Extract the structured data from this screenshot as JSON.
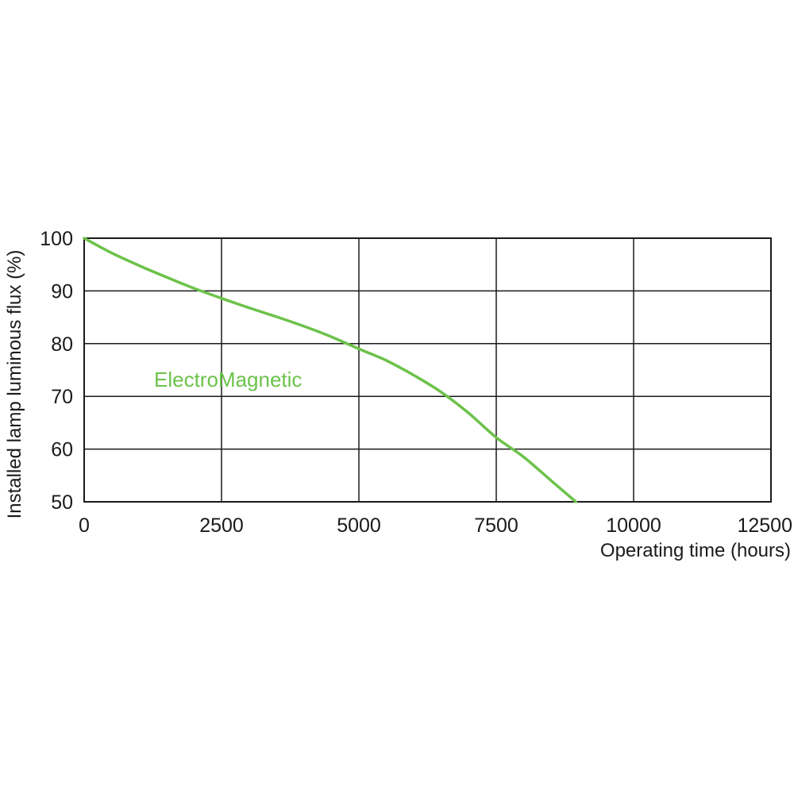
{
  "chart_data": {
    "type": "line",
    "xlabel": "Operating time (hours)",
    "ylabel": "Installed lamp luminous flux  (%)",
    "xlim": [
      0,
      12500
    ],
    "ylim": [
      50,
      100
    ],
    "x_ticks": [
      "0",
      "2500",
      "5000",
      "7500",
      "10000",
      "12500"
    ],
    "y_ticks": [
      "100",
      "90",
      "80",
      "70",
      "60",
      "50"
    ],
    "x_tick_values": [
      0,
      2500,
      5000,
      7500,
      10000,
      12500
    ],
    "y_tick_values": [
      100,
      90,
      80,
      70,
      60,
      50
    ],
    "grid": true,
    "series": [
      {
        "name": "ElectroMagnetic",
        "color": "#6cc24a",
        "x": [
          0,
          500,
          1000,
          1500,
          2000,
          2500,
          3000,
          3500,
          4000,
          4500,
          5000,
          5500,
          6000,
          6500,
          7000,
          7500,
          8000,
          8500,
          8950
        ],
        "y": [
          100,
          97.2,
          94.8,
          92.6,
          90.5,
          88.6,
          86.8,
          85.1,
          83.3,
          81.3,
          79.0,
          76.8,
          74.0,
          70.8,
          66.8,
          62.2,
          58.5,
          54.0,
          50.0
        ]
      }
    ]
  }
}
